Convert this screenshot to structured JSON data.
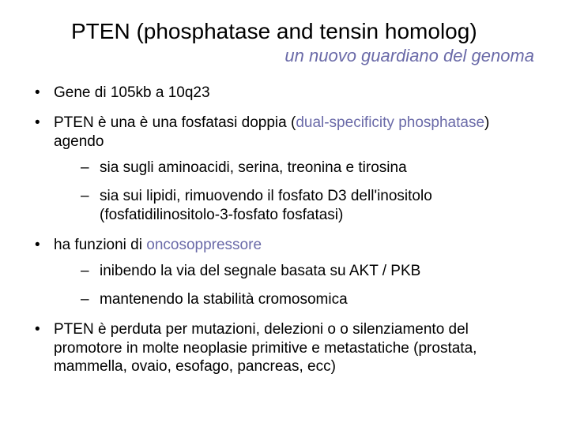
{
  "colors": {
    "text": "#000000",
    "highlight": "#6a6aa8",
    "background": "#ffffff"
  },
  "typography": {
    "title_fontsize": 28,
    "subtitle_fontsize": 22,
    "body_fontsize": 19,
    "font_family": "Arial"
  },
  "title": "PTEN (phosphatase and tensin homolog)",
  "subtitle": "un nuovo guardiano del genoma",
  "bullets": {
    "b1": "Gene di 105kb a 10q23",
    "b2_pre": "PTEN è una è una fosfatasi doppia (",
    "b2_hl": "dual-specificity phosphatase",
    "b2_post": ") agendo",
    "b2a": "sia sugli aminoacidi, serina, treonina e tirosina",
    "b2b": "sia sui lipidi, rimuovendo il fosfato D3 dell'inositolo (fosfatidilinositolo-3-fosfato fosfatasi)",
    "b3_pre": "ha funzioni di ",
    "b3_hl": "oncosoppressore",
    "b3a": "inibendo la via del segnale basata su AKT / PKB",
    "b3b": "mantenendo la stabilità cromosomica",
    "b4": "PTEN è perduta per mutazioni, delezioni o o silenziamento del promotore in molte neoplasie primitive e metastatiche (prostata, mammella, ovaio, esofago, pancreas, ecc)"
  }
}
